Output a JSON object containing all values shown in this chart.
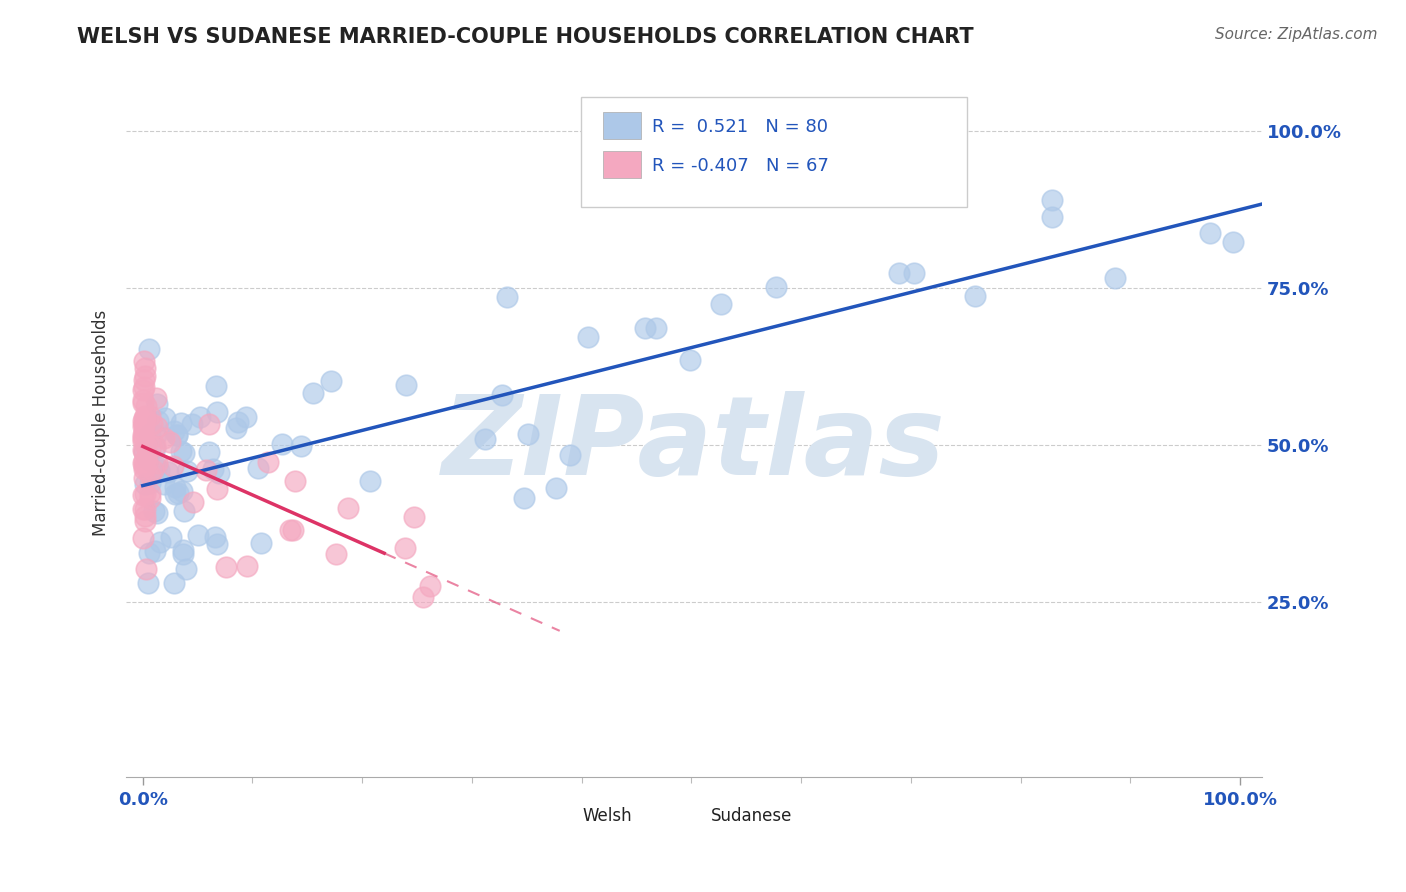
{
  "title": "WELSH VS SUDANESE MARRIED-COUPLE HOUSEHOLDS CORRELATION CHART",
  "source": "Source: ZipAtlas.com",
  "ylabel": "Married-couple Households",
  "ytick_vals": [
    0.25,
    0.5,
    0.75,
    1.0
  ],
  "ytick_labels": [
    "25.0%",
    "50.0%",
    "75.0%",
    "100.0%"
  ],
  "xtick_labels": [
    "0.0%",
    "100.0%"
  ],
  "welsh_color": "#adc8e8",
  "sudanese_color": "#f4a8c0",
  "welsh_edge_color": "#6699cc",
  "sudanese_edge_color": "#e06090",
  "welsh_line_color": "#2255bb",
  "sudanese_line_color": "#dd3366",
  "background_color": "#ffffff",
  "watermark": "ZIPatlas",
  "watermark_color": "#d8e4f0",
  "grid_color": "#cccccc",
  "title_color": "#222222",
  "axis_label_color": "#2255bb",
  "legend_text_color": "#2255bb",
  "welsh_R": 0.521,
  "welsh_N": 80,
  "sudanese_R": -0.407,
  "sudanese_N": 67,
  "figsize": [
    14.06,
    8.92
  ],
  "dpi": 100,
  "seed": 123
}
